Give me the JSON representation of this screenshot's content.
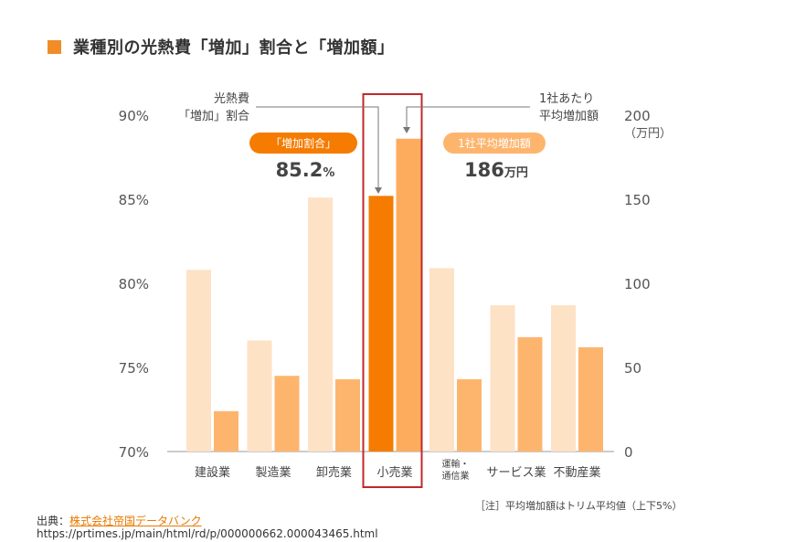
{
  "title": "業種別の光熱費「増加」割合と「増加額」",
  "source_label": "出典：",
  "source_link": "株式会社帝国データバンク",
  "source_url": "https://prtimes.jp/main/html/rd/p/000000662.000043465.html",
  "note": "［注］平均増加額はトリム平均値（上下5%）",
  "chart_data": {
    "type": "bar",
    "categories": [
      "建設業",
      "製造業",
      "卸売業",
      "小売業",
      "運輸・\n通信業",
      "サービス業",
      "不動産業"
    ],
    "highlight_index": 3,
    "series": [
      {
        "name": "光熱費「増加」割合",
        "axis": "left",
        "unit": "%",
        "values": [
          80.8,
          76.6,
          85.1,
          85.2,
          80.9,
          78.7,
          78.7
        ]
      },
      {
        "name": "1社あたり平均増加額",
        "axis": "right",
        "unit": "万円",
        "values": [
          24,
          45,
          43,
          186,
          43,
          68,
          62
        ]
      }
    ],
    "left_axis": {
      "min": 70,
      "max": 90,
      "ticks": [
        "70%",
        "75%",
        "80%",
        "85%",
        "90%"
      ]
    },
    "right_axis": {
      "min": 0,
      "max": 200,
      "ticks": [
        "0",
        "50",
        "100",
        "150",
        "200"
      ],
      "unit_label": "（万円）"
    },
    "left_legend": [
      "光熱費",
      "「増加」割合"
    ],
    "right_legend": [
      "1社あたり",
      "平均増加額"
    ],
    "badge_left": {
      "label": "「増加割合」",
      "value": "85.2",
      "unit": "%"
    },
    "badge_right": {
      "label": "1社平均増加額",
      "value": "186",
      "unit": "万円"
    },
    "colors": {
      "left_bar": "#fde2c6",
      "right_bar": "#fdb56e",
      "left_bar_highlight": "#f57c00",
      "right_bar_highlight": "#fdac5e",
      "badge_left_bg": "#f57c00",
      "badge_right_bg": "#fdb56e",
      "highlight_frame": "#c0282d"
    }
  }
}
